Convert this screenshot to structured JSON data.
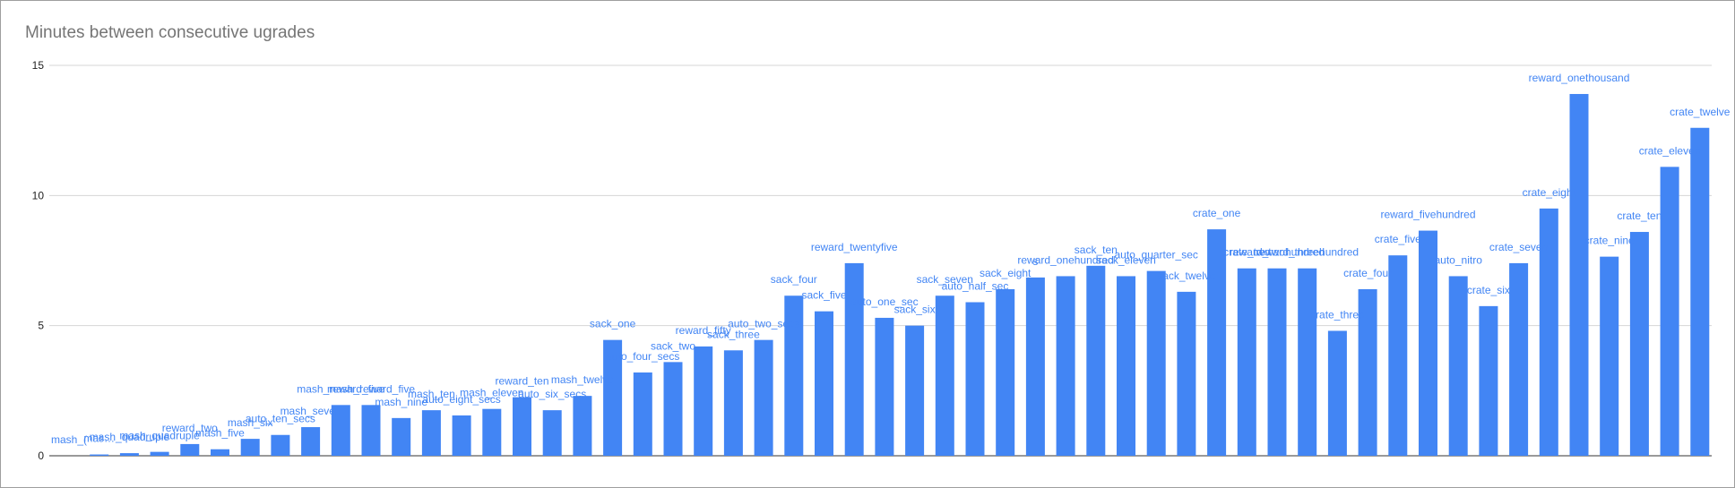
{
  "chart_data": {
    "type": "bar",
    "title": "Minutes between consecutive ugrades",
    "xlabel": "",
    "ylabel": "",
    "ylim": [
      0,
      15
    ],
    "yticks": [
      0,
      5,
      10,
      15
    ],
    "grid": true,
    "legend": "none",
    "bar_color": "#4285f4",
    "gridline_color": "#d6d6d6",
    "categories": [
      "mash_one",
      "mash_two",
      "mash_three",
      "mash_quadruple",
      "reward_two",
      "mash_five",
      "mash_six",
      "auto_ten_secs",
      "mash_seven",
      "mash_reward_five",
      "mash_eight",
      "mash_nine",
      "mash_ten",
      "auto_eight_secs",
      "mash_eleven",
      "reward_ten",
      "auto_six_secs",
      "mash_twelve",
      "sack_one",
      "auto_four_secs",
      "sack_two",
      "reward_fifty",
      "sack_three",
      "auto_two_secs",
      "sack_four",
      "sack_five",
      "reward_twentyfive",
      "auto_one_sec",
      "sack_six",
      "sack_seven",
      "auto_half_sec",
      "sack_eight",
      "sack_nine",
      "reward_onehundred",
      "sack_ten",
      "sack_eleven",
      "auto_quarter_sec",
      "sack_twelve",
      "crate_one",
      "crate_two",
      "reward_twohundred",
      "reward_threehundred",
      "crate_three",
      "crate_four",
      "crate_five",
      "reward_fivehundred",
      "auto_nitro",
      "crate_six",
      "crate_seven",
      "crate_eight",
      "reward_onethousand",
      "crate_nine",
      "crate_ten",
      "crate_eleven",
      "crate_twelve"
    ],
    "values": [
      0.0,
      0.05,
      0.1,
      0.15,
      0.45,
      0.25,
      0.65,
      0.8,
      1.1,
      1.95,
      1.95,
      1.45,
      1.75,
      1.55,
      1.8,
      2.25,
      1.75,
      2.3,
      4.45,
      3.2,
      3.6,
      4.2,
      4.05,
      4.45,
      6.15,
      5.55,
      7.4,
      5.3,
      5.0,
      6.15,
      5.9,
      6.4,
      6.85,
      6.9,
      7.3,
      6.9,
      7.1,
      6.3,
      8.7,
      7.2,
      7.2,
      7.2,
      4.8,
      6.4,
      7.7,
      8.65,
      6.9,
      5.75,
      7.4,
      9.5,
      13.9,
      7.65,
      8.6,
      11.1,
      12.6
    ],
    "data_labels": [
      "mash_(",
      "mas…",
      "mash_quadruple",
      "mash_quadruple",
      "reward_two",
      "mash_five",
      "mash_six",
      "auto_ten_secs",
      "mash_seven",
      "mash_reward_five",
      "mash_reward_five",
      "mash_nine",
      "mash_ten",
      "auto_eight_secs",
      "mash_eleven",
      "reward_ten",
      "auto_six_secs",
      "mash_twelve",
      "sack_one",
      "auto_four_secs",
      "sack_two",
      "reward_fifty",
      "sack_three",
      "auto_two_secs",
      "sack_four",
      "sack_five",
      "reward_twentyfive",
      "auto_one_sec",
      "sack_six",
      "sack_seven",
      "auto_half_sec",
      "sack_eight",
      "s",
      "reward_onehundred",
      "sack_ten",
      "sack_eleven",
      "auto_quarter_sec",
      "sack_twelve",
      "crate_one",
      "crate_two",
      "reward_twohundred",
      "reward_threehundred",
      "crate_three",
      "crate_four",
      "crate_five",
      "reward_fivehundred",
      "auto_nitro",
      "crate_six",
      "crate_seven",
      "crate_eight",
      "reward_onethousand",
      "crate_nine",
      "crate_ten",
      "crate_eleven",
      "crate_twelve"
    ]
  }
}
